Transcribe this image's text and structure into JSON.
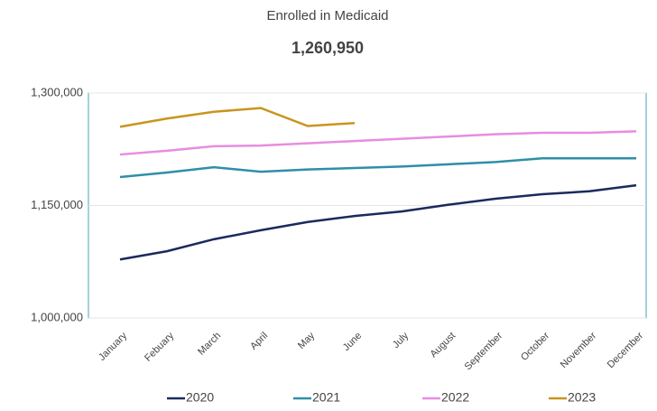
{
  "chart_data": {
    "type": "line",
    "title": "Enrolled in Medicaid",
    "subtitle": "1,260,950",
    "categories": [
      "January",
      "Febuary",
      "March",
      "April",
      "May",
      "June",
      "July",
      "August",
      "September",
      "October",
      "November",
      "December"
    ],
    "series": [
      {
        "name": "2020",
        "color": "#1b2a5c",
        "values": [
          1078000,
          1089000,
          1105000,
          1117000,
          1128000,
          1136000,
          1142000,
          1151000,
          1159000,
          1165000,
          1169000,
          1177000
        ]
      },
      {
        "name": "2021",
        "color": "#2e8fa8",
        "values": [
          1188000,
          1194000,
          1201000,
          1195000,
          1198000,
          1200000,
          1202000,
          1205000,
          1208000,
          1213000,
          1213000,
          1213000
        ]
      },
      {
        "name": "2022",
        "color": "#e88de0",
        "values": [
          1218000,
          1223000,
          1229000,
          1230000,
          1233000,
          1236000,
          1239000,
          1242000,
          1245000,
          1247000,
          1247000,
          1249000
        ]
      },
      {
        "name": "2023",
        "color": "#c8961e",
        "values": [
          1255000,
          1266000,
          1275000,
          1280000,
          1256000,
          1260000,
          null,
          null,
          null,
          null,
          null,
          null
        ]
      }
    ],
    "ylim": [
      1000000,
      1300000
    ],
    "yticks": [
      {
        "value": 1000000,
        "label": "1,000,000"
      },
      {
        "value": 1150000,
        "label": "1,150,000"
      },
      {
        "value": 1300000,
        "label": "1,300,000"
      }
    ],
    "grid": true,
    "legend": "bottom"
  }
}
